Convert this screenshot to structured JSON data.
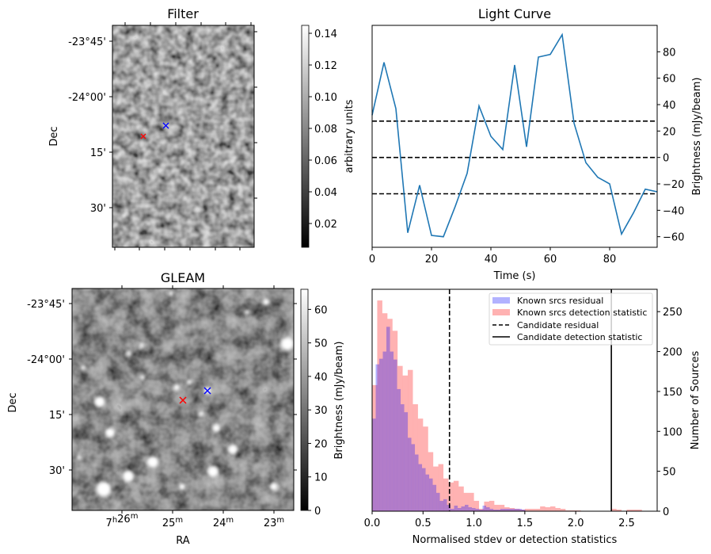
{
  "chart_data": [
    {
      "panel": "filter",
      "type": "heatmap",
      "title": "Filter",
      "ylabel": "Dec",
      "yticks": [
        "-23°45'",
        "-24°00'",
        "15'",
        "30'"
      ],
      "colorbar": {
        "label": "arbitrary units",
        "ticks": [
          "0.02",
          "0.04",
          "0.06",
          "0.08",
          "0.10",
          "0.12",
          "0.14"
        ],
        "range": [
          0.005,
          0.145
        ],
        "colormap": "gray"
      },
      "markers": [
        {
          "name": "candidate",
          "color": "#ff0000",
          "symbol": "x"
        },
        {
          "name": "known",
          "color": "#0000ff",
          "symbol": "x"
        }
      ]
    },
    {
      "panel": "light_curve",
      "type": "line",
      "title": "Light Curve",
      "xlabel": "Time (s)",
      "ylabel": "Brightness (mJy/beam)",
      "xlim": [
        0,
        96
      ],
      "ylim": [
        -68,
        100
      ],
      "xticks": [
        "0",
        "20",
        "40",
        "60",
        "80"
      ],
      "yticks": [
        "−60",
        "−40",
        "−20",
        "0",
        "20",
        "40",
        "60",
        "80"
      ],
      "x": [
        0,
        4,
        8,
        12,
        16,
        20,
        24,
        28,
        32,
        36,
        40,
        44,
        48,
        52,
        56,
        60,
        64,
        68,
        72,
        76,
        80,
        84,
        88,
        92,
        96
      ],
      "values": [
        32,
        72,
        37,
        -57,
        -21,
        -59,
        -60,
        -37,
        -12,
        39,
        16,
        6,
        70,
        8,
        76,
        78,
        93,
        26,
        -4,
        -15,
        -20,
        -58,
        -42,
        -24,
        -26
      ],
      "color": "#1f77b4",
      "hlines": [
        27.5,
        0,
        -27.5
      ],
      "hline_style": "dashed"
    },
    {
      "panel": "gleam",
      "type": "heatmap",
      "title": "GLEAM",
      "xlabel": "RA",
      "ylabel": "Dec",
      "xticks": [
        "7h26m",
        "25m",
        "24m",
        "23m"
      ],
      "yticks": [
        "-23°45'",
        "-24°00'",
        "15'",
        "30'"
      ],
      "colorbar": {
        "label": "Brightness (mJy/beam)",
        "ticks": [
          "0",
          "10",
          "20",
          "30",
          "40",
          "50",
          "60"
        ],
        "range": [
          0,
          66
        ],
        "colormap": "gray"
      },
      "markers": [
        {
          "name": "candidate",
          "color": "#ff0000",
          "symbol": "x"
        },
        {
          "name": "known",
          "color": "#0000ff",
          "symbol": "x"
        }
      ]
    },
    {
      "panel": "histogram",
      "type": "bar",
      "xlabel": "Normalised stdev or detection statistics",
      "ylabel": "Number of Sources",
      "xlim": [
        0,
        2.8
      ],
      "ylim": [
        0,
        278
      ],
      "xticks": [
        "0.0",
        "0.5",
        "1.0",
        "1.5",
        "2.0",
        "2.5"
      ],
      "yticks": [
        "0",
        "50",
        "100",
        "150",
        "200",
        "250"
      ],
      "series": [
        {
          "name": "Known srcs residual",
          "color": "#0000ff",
          "alpha": 0.3,
          "bin_start": 0.0,
          "bin_width": 0.035,
          "values": [
            116,
            184,
            191,
            200,
            231,
            200,
            190,
            153,
            134,
            124,
            92,
            84,
            71,
            59,
            54,
            46,
            41,
            33,
            23,
            13,
            15,
            8,
            3,
            7,
            4,
            6,
            8,
            5,
            4,
            3,
            2,
            7,
            5,
            3,
            2,
            2,
            3,
            3,
            3,
            3,
            3,
            3,
            2
          ]
        },
        {
          "name": "Known srcs detection statistic",
          "color": "#ff0000",
          "alpha": 0.3,
          "bin_start": 0.0,
          "bin_width": 0.05,
          "values": [
            158,
            264,
            248,
            241,
            226,
            182,
            170,
            177,
            134,
            116,
            106,
            74,
            56,
            59,
            41,
            36,
            38,
            31,
            23,
            23,
            13,
            3,
            12,
            13,
            8,
            8,
            5,
            4,
            3,
            2,
            3,
            3,
            3,
            6,
            5,
            6,
            4,
            3,
            1,
            1,
            1,
            0,
            0,
            0,
            0,
            0,
            0,
            3,
            2,
            0,
            2,
            2,
            2
          ]
        }
      ],
      "vlines": [
        {
          "name": "Candidate residual",
          "x": 0.76,
          "style": "dashed",
          "color": "#000000"
        },
        {
          "name": "Candidate detection statistic",
          "x": 2.35,
          "style": "solid",
          "color": "#000000"
        }
      ],
      "legend": {
        "position": "top-right",
        "entries": [
          "Known srcs residual",
          "Known srcs detection statistic",
          "Candidate residual",
          "Candidate detection statistic"
        ]
      }
    }
  ]
}
